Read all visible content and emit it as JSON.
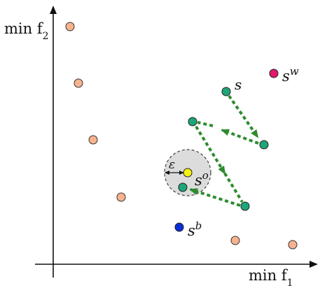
{
  "diagram": {
    "axis_labels": {
      "y": {
        "main": "min f",
        "sub": "2"
      },
      "x": {
        "main": "min f",
        "sub": "1"
      }
    },
    "point_labels": {
      "s": {
        "main": "s",
        "sup": ""
      },
      "sw": {
        "main": "s",
        "sup": "w"
      },
      "so": {
        "main": "s",
        "sup": "o"
      },
      "sb": {
        "main": "s",
        "sup": "b"
      },
      "eps": {
        "main": "ε"
      }
    },
    "colors": {
      "pareto_point": "#f6b38e",
      "path_point": "#1fa57a",
      "worst_point": "#e0196d",
      "best_point": "#0b2fd6",
      "optimum_point": "#f6f20f",
      "trajectory_arrow": "#2e8b2e",
      "neighborhood_fill": "#dcdcdc"
    },
    "icons": [
      "arrow-head",
      "double-arrow"
    ]
  }
}
